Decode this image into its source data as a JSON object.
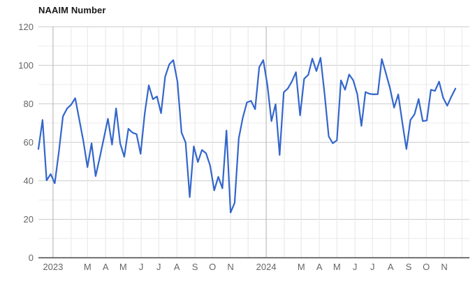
{
  "chart_data": {
    "type": "line",
    "title": "NAAIM Number",
    "series_name": "NAAIM Number",
    "frequency": "weekly",
    "start_date": "2022-12-07",
    "end_date": "2024-11-20",
    "values": [
      56.5,
      71.6,
      40.2,
      43.5,
      38.7,
      55.1,
      73.5,
      77.5,
      79.5,
      82.9,
      71.8,
      60.5,
      47.1,
      59.5,
      42.4,
      52.0,
      62.0,
      72.2,
      58.8,
      77.6,
      59.3,
      52.5,
      67.0,
      65.0,
      64.2,
      54.0,
      75.0,
      89.6,
      82.4,
      83.8,
      75.1,
      94.0,
      100.5,
      102.7,
      91.5,
      65.0,
      59.9,
      31.5,
      57.9,
      49.7,
      56.0,
      54.3,
      47.9,
      35.0,
      42.1,
      36.1,
      66.1,
      23.5,
      28.5,
      62.0,
      72.8,
      80.7,
      81.5,
      77.2,
      99.0,
      102.7,
      89.7,
      71.0,
      79.8,
      53.4,
      86.0,
      87.9,
      91.6,
      96.4,
      74.0,
      93.0,
      95.0,
      103.5,
      97.0,
      103.9,
      85.0,
      63.0,
      59.5,
      61.0,
      92.2,
      87.3,
      95.2,
      92.2,
      85.0,
      68.5,
      86.1,
      85.2,
      84.9,
      85.0,
      103.3,
      95.8,
      88.0,
      78.0,
      84.9,
      70.4,
      56.5,
      71.6,
      74.6,
      82.5,
      71.0,
      71.3,
      87.3,
      86.7,
      91.5,
      83.1,
      79.0,
      83.7,
      87.9
    ],
    "ylim": [
      0,
      120
    ],
    "ytick_labels": [
      "0",
      "20",
      "40",
      "60",
      "80",
      "100",
      "120"
    ],
    "ytick_step_major": 20,
    "ytick_step_minor": 10,
    "xtick_labels": [
      "2023",
      "M",
      "A",
      "M",
      "J",
      "J",
      "A",
      "S",
      "O",
      "N",
      "2024",
      "M",
      "A",
      "M",
      "J",
      "J",
      "A",
      "S",
      "O",
      "N"
    ],
    "grid": "on",
    "legend": "none",
    "colors": {
      "line": "#3366cc",
      "grid_major": "#cccccc",
      "grid_minor": "#ebebeb",
      "grid_month": "#e6e6e6",
      "grid_year": "#b0b0b0",
      "axis_baseline": "#424242",
      "axis_label": "#666666",
      "title": "#1a1a1a",
      "background": "#ffffff"
    }
  }
}
